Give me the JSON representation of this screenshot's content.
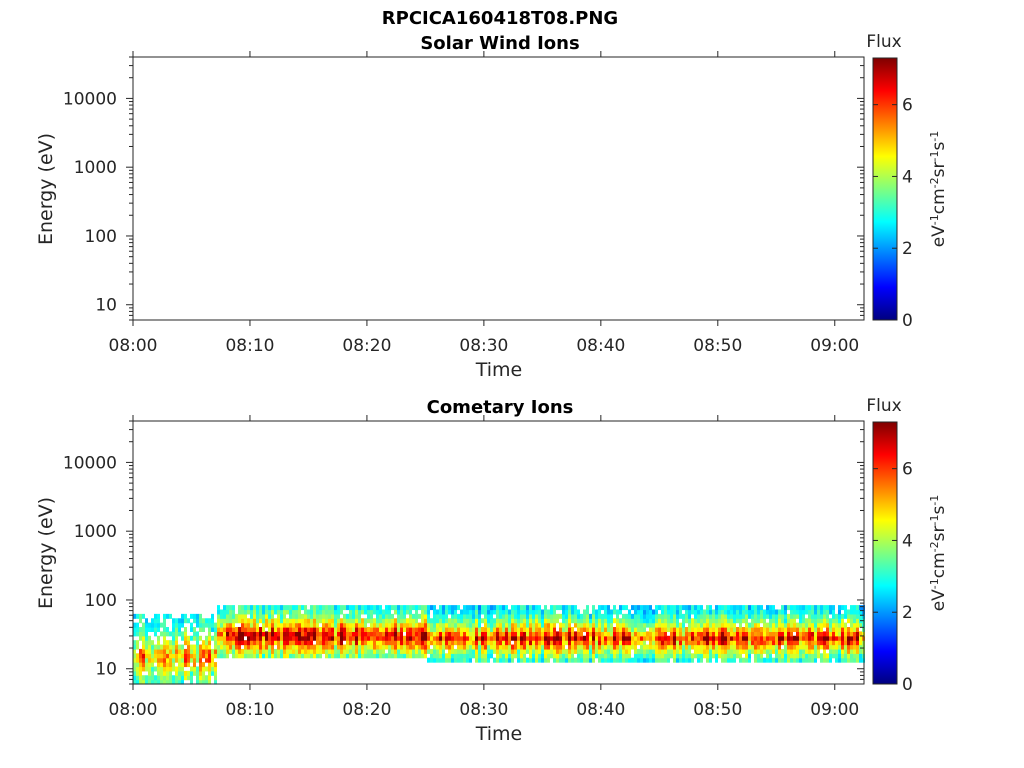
{
  "figure": {
    "filename_title": "RPCICA160418T08.PNG"
  },
  "colormap": [
    "#00007f",
    "#0000ff",
    "#007fff",
    "#00ffff",
    "#7fff7f",
    "#ffff00",
    "#ff7f00",
    "#ff0000",
    "#7f0000"
  ],
  "chart_data": [
    {
      "type": "heatmap",
      "title": "Solar Wind Ions",
      "xlabel": "Time",
      "ylabel": "Energy (eV)",
      "x_ticks": [
        "08:00",
        "08:10",
        "08:20",
        "08:30",
        "08:40",
        "08:50",
        "09:00"
      ],
      "x_range_minutes": [
        0,
        62.5
      ],
      "y_scale": "log",
      "y_range": [
        6,
        40000
      ],
      "y_ticks": [
        10,
        100,
        1000,
        10000
      ],
      "y_tick_labels": [
        "10",
        "100",
        "1000",
        "10000"
      ],
      "colorbar": {
        "title": "Flux",
        "label": "eV-1cm-2sr-1s-1",
        "range": [
          0,
          7.3
        ],
        "ticks": [
          0,
          2,
          4,
          6
        ],
        "tick_labels": [
          "0",
          "2",
          "4",
          "6"
        ]
      },
      "data": "empty"
    },
    {
      "type": "heatmap",
      "title": "Cometary Ions",
      "xlabel": "Time",
      "ylabel": "Energy (eV)",
      "x_ticks": [
        "08:00",
        "08:10",
        "08:20",
        "08:30",
        "08:40",
        "08:50",
        "09:00"
      ],
      "x_range_minutes": [
        0,
        62.5
      ],
      "y_scale": "log",
      "y_range": [
        6,
        40000
      ],
      "y_ticks": [
        10,
        100,
        1000,
        10000
      ],
      "y_tick_labels": [
        "10",
        "100",
        "1000",
        "10000"
      ],
      "colorbar": {
        "title": "Flux",
        "label": "eV-1cm-2sr-1s-1",
        "range": [
          0,
          7.3
        ],
        "ticks": [
          0,
          2,
          4,
          6
        ],
        "tick_labels": [
          "0",
          "2",
          "4",
          "6"
        ]
      },
      "segments": [
        {
          "t_start_min": 0,
          "t_end_min": 7,
          "e_min_eV": 6,
          "e_max_eV": 60,
          "peak_eV": 15,
          "peak_flux": 5.8,
          "edge_flux": 3.0
        },
        {
          "t_start_min": 7,
          "t_end_min": 25,
          "e_min_eV": 14,
          "e_max_eV": 80,
          "peak_eV": 30,
          "peak_flux": 7.2,
          "edge_flux": 3.2
        },
        {
          "t_start_min": 25,
          "t_end_min": 62.5,
          "e_min_eV": 12,
          "e_max_eV": 80,
          "peak_eV": 28,
          "peak_flux": 6.8,
          "edge_flux": 2.8
        }
      ]
    }
  ]
}
